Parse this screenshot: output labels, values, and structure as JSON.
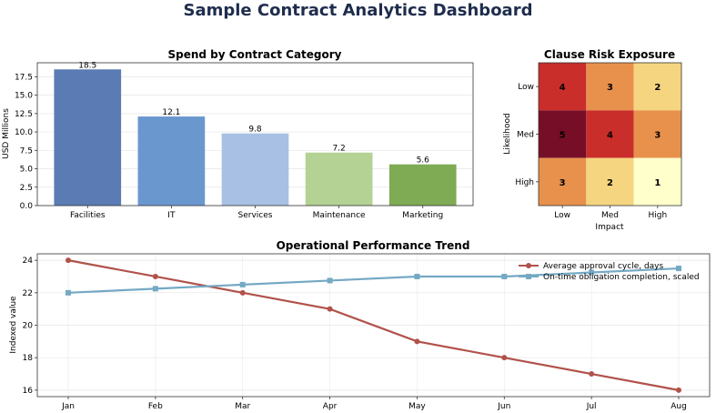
{
  "dashboard": {
    "title": "Sample Contract Analytics Dashboard"
  },
  "chart_data": [
    {
      "type": "bar",
      "title": "Spend by Contract Category",
      "ylabel": "USD Millions",
      "xlabel": "",
      "categories": [
        "Facilities",
        "IT",
        "Services",
        "Maintenance",
        "Marketing"
      ],
      "values": [
        18.5,
        12.1,
        9.8,
        7.2,
        5.6
      ],
      "value_labels": [
        "18.5",
        "12.1",
        "9.8",
        "7.2",
        "5.6"
      ],
      "colors": [
        "#5b7bb5",
        "#6b97cf",
        "#a8c0e3",
        "#b3d293",
        "#7fab54"
      ],
      "ylim": [
        0,
        19.4
      ],
      "yticks": [
        0,
        2.5,
        5,
        7.5,
        10,
        12.5,
        15,
        17.5
      ],
      "ytick_labels": [
        "0.0",
        "2.5",
        "5.0",
        "7.5",
        "10.0",
        "12.5",
        "15.0",
        "17.5"
      ],
      "grid": true
    },
    {
      "type": "heatmap",
      "title": "Clause Risk Exposure",
      "xlabel": "Impact",
      "ylabel": "Likelihood",
      "x_categories": [
        "Low",
        "Med",
        "High"
      ],
      "y_categories": [
        "Low",
        "Med",
        "High"
      ],
      "values": [
        [
          4,
          3,
          2
        ],
        [
          5,
          4,
          3
        ],
        [
          3,
          2,
          1
        ]
      ],
      "value_labels": [
        [
          "4",
          "3",
          "2"
        ],
        [
          "5",
          "4",
          "3"
        ],
        [
          "3",
          "2",
          "1"
        ]
      ],
      "color_scale": {
        "1": "#ffffcc",
        "2": "#f5d580",
        "3": "#e8914c",
        "4": "#ca2e2b",
        "5": "#760e27"
      }
    },
    {
      "type": "line",
      "title": "Operational Performance Trend",
      "ylabel": "Indexed value",
      "xlabel": "",
      "x": [
        "Jan",
        "Feb",
        "Mar",
        "Apr",
        "May",
        "Jun",
        "Jul",
        "Aug"
      ],
      "series": [
        {
          "name": "Average approval cycle, days",
          "values": [
            24,
            23,
            22,
            21,
            19,
            18,
            17,
            16
          ],
          "color": "#b1524b",
          "marker": "circle"
        },
        {
          "name": "On-time obligation completion, scaled",
          "values": [
            22,
            22.25,
            22.5,
            22.75,
            23,
            23,
            23.25,
            23.5
          ],
          "color": "#74a9c4",
          "marker": "square"
        }
      ],
      "ylim": [
        15.6,
        24.4
      ],
      "yticks": [
        16,
        18,
        20,
        22,
        24
      ],
      "ytick_labels": [
        "16",
        "18",
        "20",
        "22",
        "24"
      ],
      "legend": "top-right",
      "grid": true
    }
  ]
}
